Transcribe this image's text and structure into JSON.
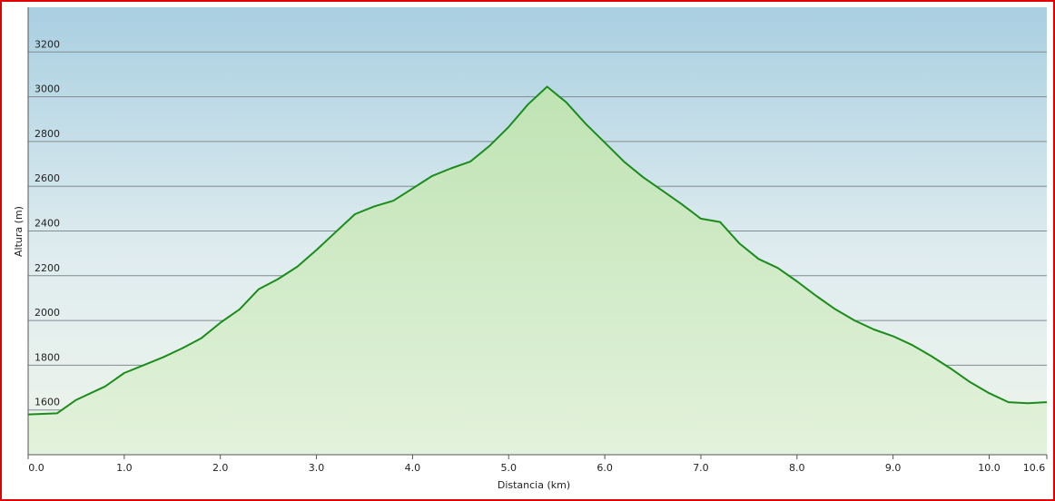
{
  "chart_data": {
    "type": "area",
    "x_label": "Distancia  (km)",
    "y_label": "Altura (m)",
    "x": [
      0,
      0.3,
      0.5,
      0.8,
      1.0,
      1.2,
      1.4,
      1.6,
      1.8,
      2.0,
      2.2,
      2.4,
      2.6,
      2.8,
      3.0,
      3.2,
      3.4,
      3.6,
      3.8,
      4.0,
      4.2,
      4.4,
      4.6,
      4.8,
      5.0,
      5.2,
      5.4,
      5.6,
      5.8,
      6.0,
      6.2,
      6.4,
      6.6,
      6.8,
      7.0,
      7.2,
      7.4,
      7.6,
      7.8,
      8.0,
      8.2,
      8.4,
      8.6,
      8.8,
      9.0,
      9.2,
      9.4,
      9.6,
      9.8,
      10.0,
      10.2,
      10.4,
      10.6
    ],
    "values": [
      1580,
      1585,
      1645,
      1705,
      1765,
      1800,
      1835,
      1875,
      1920,
      1990,
      2050,
      2140,
      2185,
      2240,
      2315,
      2395,
      2475,
      2510,
      2535,
      2590,
      2645,
      2680,
      2710,
      2780,
      2865,
      2965,
      3045,
      2975,
      2880,
      2795,
      2710,
      2640,
      2580,
      2520,
      2455,
      2440,
      2345,
      2275,
      2235,
      2175,
      2110,
      2050,
      2000,
      1960,
      1930,
      1890,
      1840,
      1785,
      1725,
      1675,
      1635,
      1630,
      1635
    ],
    "color": "#1b8c1b",
    "xlim": [
      0,
      10.6
    ],
    "xticks": [
      {
        "value": 0,
        "label": "0.0"
      },
      {
        "value": 1,
        "label": "1.0"
      },
      {
        "value": 2,
        "label": "2.0"
      },
      {
        "value": 3,
        "label": "3.0"
      },
      {
        "value": 4,
        "label": "4.0"
      },
      {
        "value": 5,
        "label": "5.0"
      },
      {
        "value": 6,
        "label": "6.0"
      },
      {
        "value": 7,
        "label": "7.0"
      },
      {
        "value": 8,
        "label": "8.0"
      },
      {
        "value": 9,
        "label": "9.0"
      },
      {
        "value": 10,
        "label": "10.0"
      },
      10.6
    ],
    "ylim": [
      1400,
      3400
    ],
    "yticks": [
      1600,
      1800,
      2000,
      2200,
      2400,
      2600,
      2800,
      3000,
      3200
    ],
    "grid": true
  }
}
